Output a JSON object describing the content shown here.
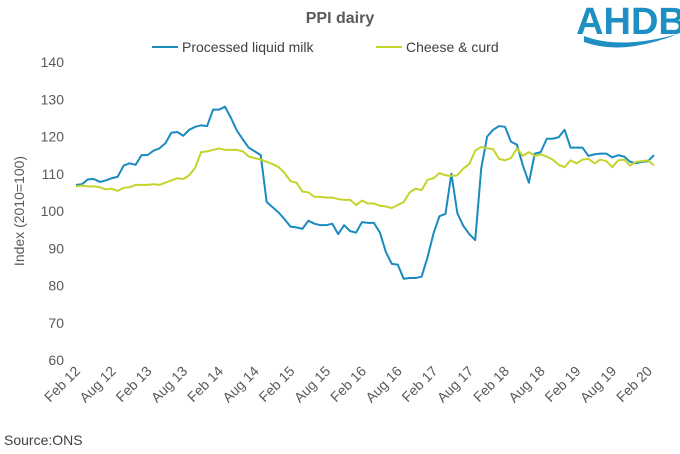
{
  "chart_data": {
    "type": "line",
    "title": "PPI dairy",
    "xlabel": "",
    "ylabel": "Index  (2010=100)",
    "ylim": [
      60,
      140
    ],
    "yticks": [
      60,
      70,
      80,
      90,
      100,
      110,
      120,
      130,
      140
    ],
    "xtick_labels": [
      "Feb 12",
      "Aug 12",
      "Feb 13",
      "Aug 13",
      "Feb 14",
      "Aug 14",
      "Feb 15",
      "Aug 15",
      "Feb 16",
      "Aug 16",
      "Feb 17",
      "Aug 17",
      "Feb 18",
      "Aug 18",
      "Feb 19",
      "Aug 19",
      "Feb 20"
    ],
    "grid": false,
    "legend_position": "top",
    "series": [
      {
        "name": "Processed liquid milk",
        "color": "#1a8bbf",
        "values": [
          107,
          107.2,
          108.5,
          108.6,
          107.8,
          108.2,
          108.8,
          109.2,
          112.2,
          112.8,
          112.4,
          115,
          115,
          116.2,
          116.8,
          118.2,
          121,
          121.2,
          120.2,
          121.8,
          122.6,
          123,
          122.8,
          127.2,
          127.2,
          128,
          125,
          121.6,
          119.2,
          117,
          116,
          115,
          102.4,
          101,
          99.6,
          97.8,
          95.8,
          95.6,
          95.2,
          97.4,
          96.6,
          96.2,
          96.2,
          96.6,
          93.8,
          96.2,
          94.6,
          94.2,
          97,
          96.8,
          96.8,
          94.2,
          89,
          85.8,
          85.6,
          81.8,
          82,
          82,
          82.4,
          87.6,
          94,
          98.6,
          99.2,
          110,
          99.4,
          96,
          93.8,
          92.2,
          111.4,
          120,
          121.8,
          122.8,
          122.6,
          118.6,
          117.8,
          112.2,
          107.6,
          115.4,
          115.8,
          119.4,
          119.4,
          119.8,
          121.8,
          117,
          117,
          117,
          114.8,
          115.2,
          115.4,
          115.4,
          114.4,
          115,
          114.6,
          113.2,
          112.8,
          113.2,
          113.4,
          115
        ]
      },
      {
        "name": "Cheese & curd",
        "color": "#c5d42a",
        "values": [
          106.6,
          106.8,
          106.6,
          106.6,
          106.4,
          105.8,
          106,
          105.4,
          106.2,
          106.4,
          107,
          107,
          107,
          107.2,
          107,
          107.6,
          108.2,
          108.8,
          108.6,
          109.6,
          111.6,
          115.8,
          116,
          116.4,
          116.8,
          116.4,
          116.4,
          116.4,
          116,
          114.6,
          114.2,
          113.8,
          113.2,
          112.6,
          111.8,
          110.2,
          108,
          107.6,
          105.2,
          105,
          103.8,
          103.8,
          103.6,
          103.6,
          103.2,
          103,
          103,
          101.6,
          102.8,
          102,
          102,
          101.4,
          101.2,
          100.8,
          101.6,
          102.4,
          105,
          106,
          105.6,
          108.4,
          108.8,
          110.2,
          109.6,
          109.4,
          109.6,
          111.4,
          112.6,
          116.2,
          117.2,
          116.8,
          116.6,
          114,
          113.6,
          114.2,
          116.8,
          114.8,
          115.8,
          114.8,
          115.2,
          114.6,
          113.8,
          112.4,
          111.8,
          113.6,
          112.8,
          113.8,
          114,
          112.8,
          113.8,
          113.4,
          111.8,
          113.6,
          113.8,
          112.2,
          113.2,
          113.4,
          113.6,
          112.2
        ]
      }
    ]
  },
  "source": "Source:ONS",
  "logo": {
    "text": "AHDB",
    "color": "#1e8fc3"
  }
}
